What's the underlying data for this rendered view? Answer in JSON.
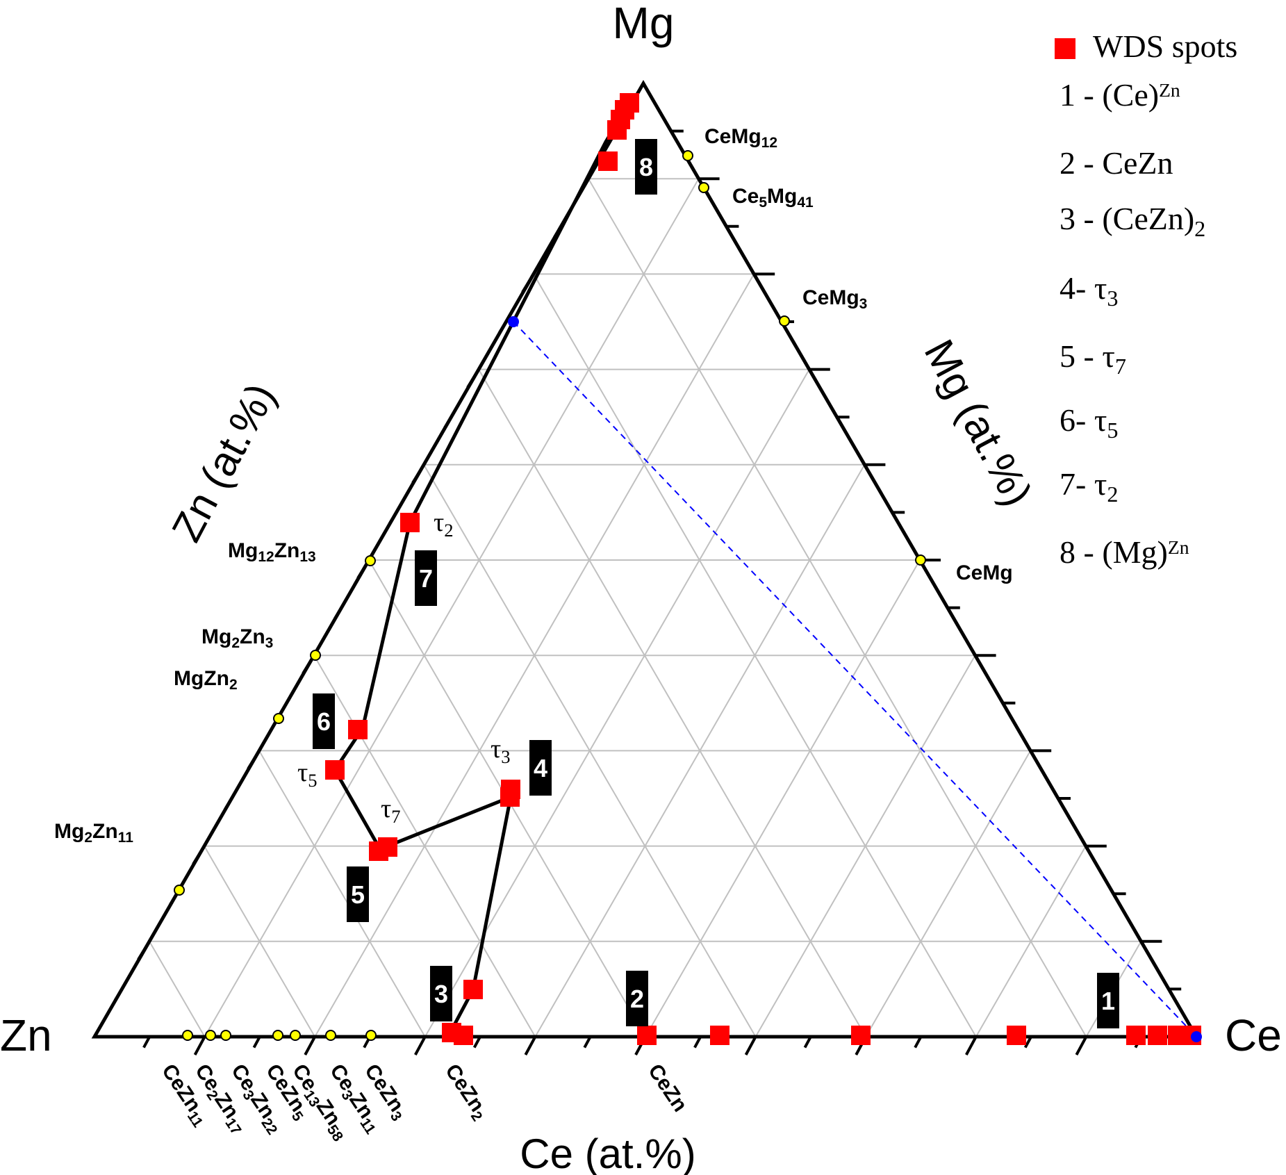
{
  "vertices": {
    "top": "Mg",
    "left": "Zn",
    "right": "Ce"
  },
  "axes": {
    "left": "Zn (at.%)",
    "right": "Mg (at.%)",
    "bottom": "Ce (at.%)"
  },
  "legend": {
    "marker_label": "WDS spots",
    "marker_color": "#ff0000",
    "items": [
      {
        "num": "1 - ",
        "base": "(Ce)",
        "sup": "Zn"
      },
      {
        "num": "2 - ",
        "base": "CeZn"
      },
      {
        "num": "3 - ",
        "base": "(CeZn)",
        "sub": "2"
      },
      {
        "num": "4- ",
        "base": "τ",
        "sub": "3"
      },
      {
        "num": "5 - ",
        "base": "τ",
        "sub": "7"
      },
      {
        "num": "6- ",
        "base": "τ",
        "sub": "5"
      },
      {
        "num": "7- ",
        "base": "τ",
        "sub": "2"
      },
      {
        "num": "8 - ",
        "base": "(Mg)",
        "sup": "Zn"
      }
    ]
  },
  "phase_labels": [
    {
      "id": "CeMg12",
      "parts": [
        [
          "CeMg",
          ""
        ],
        [
          "12",
          "sub"
        ]
      ]
    },
    {
      "id": "Ce5Mg41",
      "parts": [
        [
          "Ce",
          ""
        ],
        [
          "5",
          "sub"
        ],
        [
          "Mg",
          ""
        ],
        [
          "41",
          "sub"
        ]
      ]
    },
    {
      "id": "CeMg3",
      "parts": [
        [
          "CeMg",
          ""
        ],
        [
          "3",
          "sub"
        ]
      ]
    },
    {
      "id": "CeMg",
      "parts": [
        [
          "CeMg",
          ""
        ]
      ]
    },
    {
      "id": "Mg12Zn13",
      "parts": [
        [
          "Mg",
          ""
        ],
        [
          "12",
          "sub"
        ],
        [
          "Zn",
          ""
        ],
        [
          "13",
          "sub"
        ]
      ]
    },
    {
      "id": "Mg2Zn3",
      "parts": [
        [
          "Mg",
          ""
        ],
        [
          "2",
          "sub"
        ],
        [
          "Zn",
          ""
        ],
        [
          "3",
          "sub"
        ]
      ]
    },
    {
      "id": "MgZn2",
      "parts": [
        [
          "MgZn",
          ""
        ],
        [
          "2",
          "sub"
        ]
      ]
    },
    {
      "id": "Mg2Zn11",
      "parts": [
        [
          "Mg",
          ""
        ],
        [
          "2",
          "sub"
        ],
        [
          "Zn",
          ""
        ],
        [
          "11",
          "sub"
        ]
      ]
    }
  ],
  "bottom_phase_labels": [
    {
      "id": "CeZn11",
      "parts": [
        [
          "CeZn",
          ""
        ],
        [
          "11",
          "sub"
        ]
      ]
    },
    {
      "id": "Ce2Zn17",
      "parts": [
        [
          "Ce",
          ""
        ],
        [
          "2",
          "sub"
        ],
        [
          "Zn",
          ""
        ],
        [
          "17",
          "sub"
        ]
      ]
    },
    {
      "id": "Ce3Zn22",
      "parts": [
        [
          "Ce",
          ""
        ],
        [
          "3",
          "sub"
        ],
        [
          "Zn",
          ""
        ],
        [
          "22",
          "sub"
        ]
      ]
    },
    {
      "id": "Ce13Zn58",
      "parts": [
        [
          "Ce",
          ""
        ],
        [
          "13",
          "sub"
        ],
        [
          "Zn",
          ""
        ],
        [
          "58",
          "sub"
        ]
      ]
    },
    {
      "id": "CeZn5",
      "parts": [
        [
          "CeZn",
          ""
        ],
        [
          "5",
          "sub"
        ]
      ]
    },
    {
      "id": "Ce3Zn11",
      "parts": [
        [
          "Ce",
          ""
        ],
        [
          "3",
          "sub"
        ],
        [
          "Zn",
          ""
        ],
        [
          "11",
          "sub"
        ]
      ]
    },
    {
      "id": "CeZn3",
      "parts": [
        [
          "CeZn",
          ""
        ],
        [
          "3",
          "sub"
        ]
      ]
    },
    {
      "id": "CeZn2",
      "parts": [
        [
          "CeZn",
          ""
        ],
        [
          "2",
          "sub"
        ]
      ]
    },
    {
      "id": "CeZn",
      "parts": [
        [
          "CeZn",
          ""
        ]
      ]
    }
  ],
  "tau_labels": [
    {
      "id": "tau2",
      "base": "τ",
      "sub": "2"
    },
    {
      "id": "tau3",
      "base": "τ",
      "sub": "3"
    },
    {
      "id": "tau5",
      "base": "τ",
      "sub": "5"
    },
    {
      "id": "tau7",
      "base": "τ",
      "sub": "7"
    }
  ],
  "region_labels": [
    "1",
    "2",
    "3",
    "4",
    "5",
    "6",
    "7",
    "8"
  ],
  "colors": {
    "frame": "#000000",
    "grid": "#c0c0c0",
    "wds": "#ff0000",
    "phase_point": "#ffff00",
    "dashed_line": "#0000ff",
    "tie_line": "#000000",
    "label_box": "#000000",
    "label_text": "#ffffff"
  }
}
